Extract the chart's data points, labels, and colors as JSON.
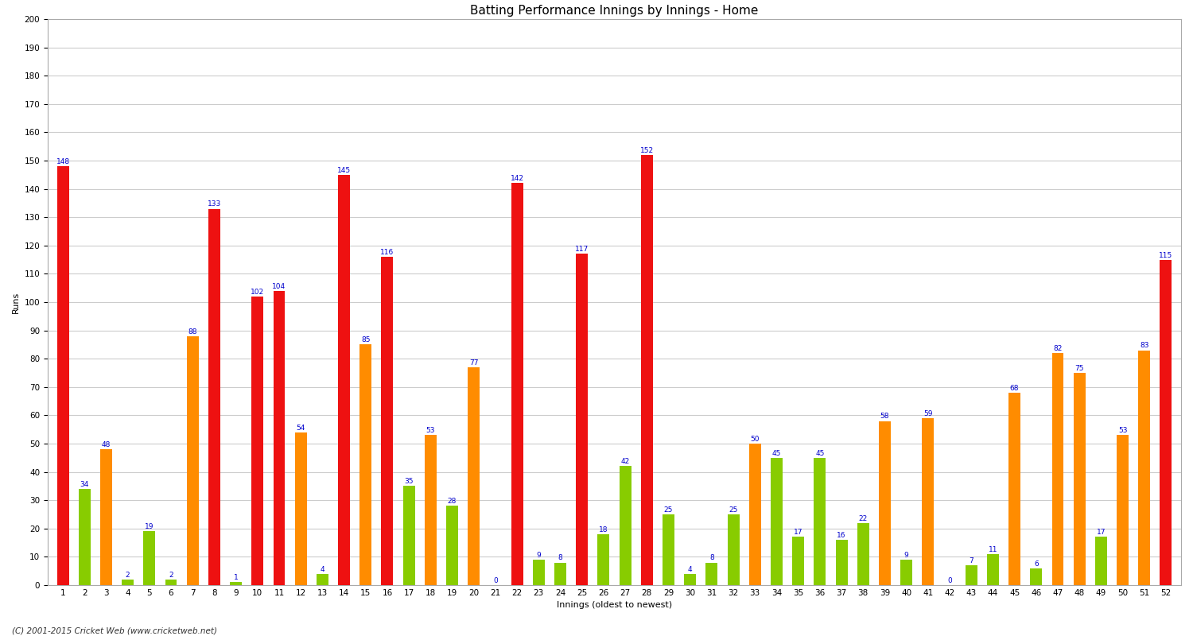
{
  "title": "Batting Performance Innings by Innings - Home",
  "xlabel": "Innings (oldest to newest)",
  "ylabel": "Runs",
  "innings": [
    1,
    2,
    3,
    4,
    5,
    6,
    7,
    8,
    9,
    10,
    11,
    12,
    13,
    14,
    15,
    16,
    17,
    18,
    19,
    20,
    21,
    22,
    23,
    24,
    25,
    26,
    27,
    28,
    29,
    30,
    31,
    32,
    33,
    34,
    35,
    36,
    37,
    38,
    39,
    40,
    41,
    42,
    43,
    44,
    45,
    46,
    47,
    48,
    49,
    50,
    51,
    52
  ],
  "values": [
    148,
    34,
    48,
    2,
    19,
    2,
    88,
    133,
    1,
    102,
    104,
    54,
    4,
    145,
    85,
    116,
    35,
    53,
    28,
    77,
    0,
    142,
    9,
    8,
    117,
    18,
    42,
    152,
    25,
    4,
    8,
    25,
    50,
    45,
    17,
    45,
    16,
    22,
    58,
    9,
    59,
    0,
    7,
    11,
    68,
    6,
    82,
    75,
    17,
    53,
    83,
    115
  ],
  "colors": [
    "red",
    "green",
    "orange",
    "green",
    "green",
    "green",
    "orange",
    "red",
    "green",
    "red",
    "red",
    "orange",
    "green",
    "red",
    "orange",
    "red",
    "green",
    "orange",
    "green",
    "orange",
    "green",
    "red",
    "green",
    "green",
    "red",
    "green",
    "green",
    "red",
    "green",
    "green",
    "green",
    "green",
    "orange",
    "green",
    "green",
    "green",
    "green",
    "green",
    "orange",
    "green",
    "orange",
    "green",
    "green",
    "green",
    "orange",
    "green",
    "orange",
    "orange",
    "green",
    "orange",
    "orange",
    "red"
  ],
  "ylim": [
    0,
    200
  ],
  "yticks": [
    0,
    10,
    20,
    30,
    40,
    50,
    60,
    70,
    80,
    90,
    100,
    110,
    120,
    130,
    140,
    150,
    160,
    170,
    180,
    190,
    200
  ],
  "background_color": "#ffffff",
  "grid_color": "#cccccc",
  "bar_label_color": "#0000cc",
  "bar_label_fontsize": 6.5,
  "title_fontsize": 11,
  "axis_label_fontsize": 8,
  "tick_fontsize": 7.5,
  "footer": "(C) 2001-2015 Cricket Web (www.cricketweb.net)",
  "red_color": "#ee1111",
  "orange_color": "#ff8c00",
  "green_color": "#88cc00"
}
